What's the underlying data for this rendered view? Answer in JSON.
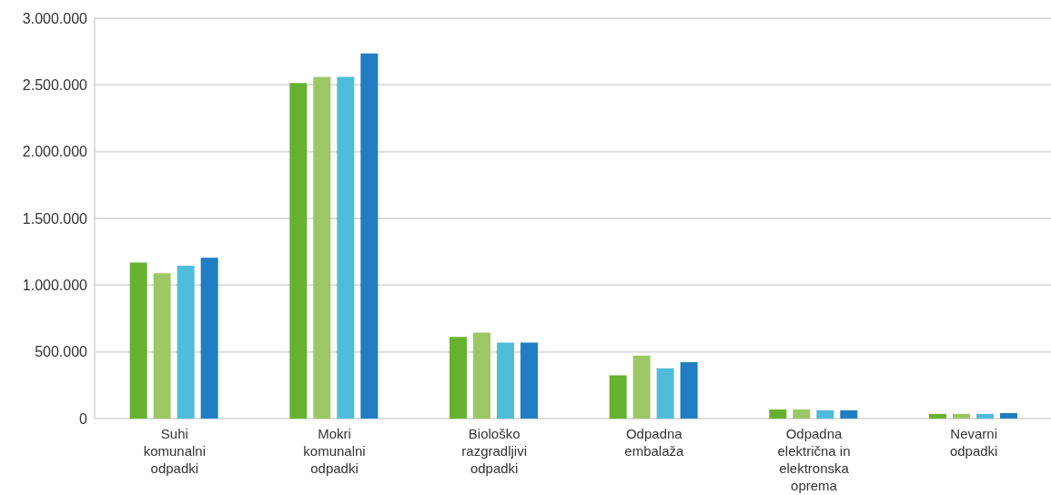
{
  "chart_data": {
    "type": "bar",
    "categories": [
      "Suhi komunalni odpadki",
      "Mokri komunalni odpadki",
      "Biološko razgradljivi odpadki",
      "Odpadna embalaža",
      "Odpadna električna in elektronska oprema",
      "Nevarni odpadki"
    ],
    "series": [
      {
        "color": "#66b22f",
        "values": [
          1170000,
          2515000,
          612000,
          324000,
          68000,
          35000
        ]
      },
      {
        "color": "#9dc765",
        "values": [
          1090000,
          2560000,
          645000,
          472000,
          68000,
          35000
        ]
      },
      {
        "color": "#4fbcd9",
        "values": [
          1145000,
          2560000,
          570000,
          377000,
          62000,
          35000
        ]
      },
      {
        "color": "#217dc2",
        "values": [
          1205000,
          2735000,
          570000,
          422000,
          62000,
          41000
        ]
      }
    ],
    "ylim": [
      0,
      3000000
    ],
    "yticks": [
      {
        "value": 0,
        "label": "0"
      },
      {
        "value": 500000,
        "label": "500.000"
      },
      {
        "value": 1000000,
        "label": "1.000.000"
      },
      {
        "value": 1500000,
        "label": "1.500.000"
      },
      {
        "value": 2000000,
        "label": "2.000.000"
      },
      {
        "value": 2500000,
        "label": "2.500.000"
      },
      {
        "value": 3000000,
        "label": "3.000.000"
      }
    ],
    "grid": "y",
    "legend": false
  }
}
